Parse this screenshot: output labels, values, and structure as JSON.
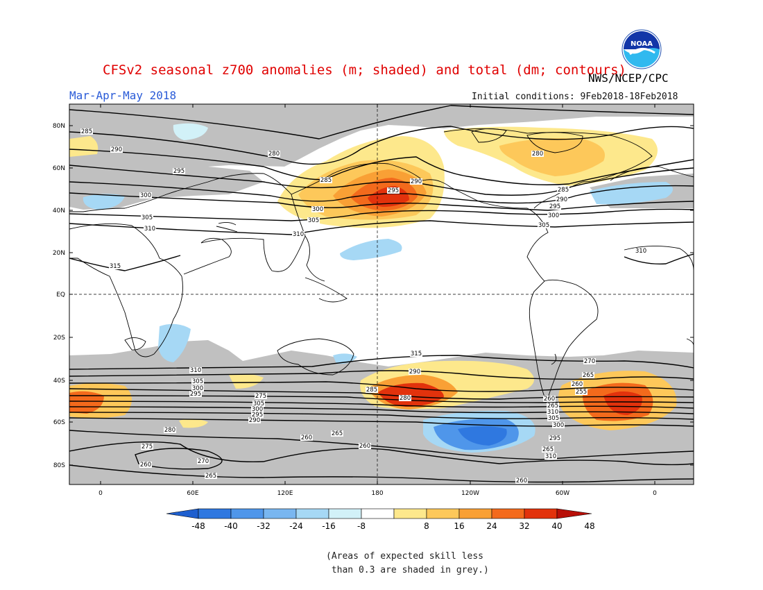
{
  "header": {
    "title": "CFSv2 seasonal z700 anomalies (m; shaded) and total (dm; contours)",
    "period": "Mar-Apr-May 2018",
    "initial_conditions": "Initial conditions: 9Feb2018-18Feb2018",
    "agency": "NWS/NCEP/CPC",
    "logo_text": "NOAA"
  },
  "map": {
    "lat_labels": [
      "80N",
      "60N",
      "40N",
      "20N",
      "EQ",
      "20S",
      "40S",
      "60S",
      "80S"
    ],
    "lon_labels": [
      "0",
      "60E",
      "120E",
      "180",
      "120W",
      "60W",
      "0"
    ],
    "contour_labels": [
      "280",
      "285",
      "290",
      "295",
      "300",
      "305",
      "310",
      "315",
      "285",
      "290",
      "295",
      "300",
      "305",
      "310",
      "280",
      "285",
      "290",
      "295",
      "300",
      "305",
      "310",
      "315",
      "310",
      "305",
      "300",
      "295",
      "290",
      "285",
      "280",
      "275",
      "270",
      "265",
      "260",
      "255",
      "260",
      "265",
      "310",
      "305",
      "300",
      "295",
      "310",
      "305",
      "300",
      "295",
      "290",
      "280",
      "275",
      "270",
      "265",
      "260",
      "265",
      "260",
      "260",
      "260",
      "265"
    ]
  },
  "colorbar": {
    "labels": [
      "-48",
      "-40",
      "-32",
      "-24",
      "-16",
      "-8",
      "8",
      "16",
      "24",
      "32",
      "40",
      "48"
    ],
    "colors": [
      "#1e5fcf",
      "#2f78e0",
      "#4f96ea",
      "#79b6f0",
      "#a6d8f5",
      "#d2f1f8",
      "#ffffff",
      "#fde88c",
      "#fdc85a",
      "#f9a035",
      "#f36a1c",
      "#e2320c",
      "#b80f08"
    ]
  },
  "note": "(Areas of expected skill less\n than 0.3 are shaded in grey.)"
}
